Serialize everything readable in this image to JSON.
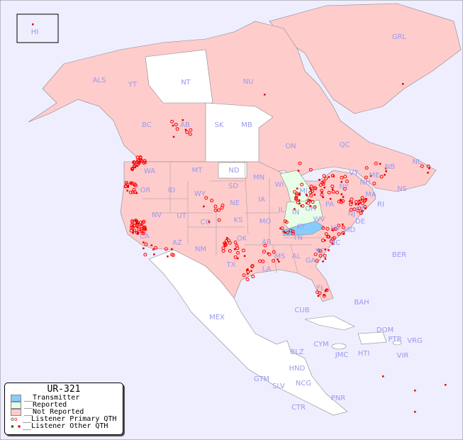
{
  "map": {
    "colors": {
      "ocean": "#eeeeff",
      "not_reported": "#ffcccc",
      "reported": "#e6ffe6",
      "transmitter": "#88ccff",
      "no_data": "#ffffff",
      "label": "#9999ee",
      "primary_qth": "#ff0000",
      "other_qth": "#dd0000"
    },
    "labels": [
      "HI",
      "ALS",
      "YT",
      "NT",
      "NU",
      "GRL",
      "BC",
      "AB",
      "SK",
      "MB",
      "ON",
      "QC",
      "NL",
      "NS",
      "NB",
      "WA",
      "OR",
      "ID",
      "MT",
      "ND",
      "SD",
      "MN",
      "WI",
      "MI",
      "NY",
      "VT",
      "NH",
      "ME",
      "MA",
      "CT",
      "RI",
      "NJ",
      "PA",
      "DE",
      "MD",
      "OH",
      "IN",
      "IL",
      "IA",
      "NE",
      "WY",
      "UT",
      "NV",
      "CA",
      "CO",
      "KS",
      "MO",
      "KY",
      "WV",
      "VA",
      "NC",
      "SC",
      "TN",
      "AR",
      "OK",
      "AZ",
      "NM",
      "TX",
      "LA",
      "MS",
      "AL",
      "GA",
      "FL",
      "BER",
      "BAH",
      "CUB",
      "MEX",
      "CYM",
      "JMC",
      "HTI",
      "DOM",
      "PTR",
      "VRG",
      "VIR",
      "BLZ",
      "HND",
      "GTM",
      "SLV",
      "NCG",
      "CTR",
      "PNR"
    ]
  },
  "legend": {
    "title": "UR-321",
    "items": [
      {
        "label": "__Transmitter",
        "color": "#88ccff"
      },
      {
        "label": "__Reported",
        "color": "#e6ffe6"
      },
      {
        "label": "__Not Reported",
        "color": "#ffcccc"
      },
      {
        "label": "__Listener Primary QTH"
      },
      {
        "label": "__Listener Other QTH"
      }
    ]
  }
}
